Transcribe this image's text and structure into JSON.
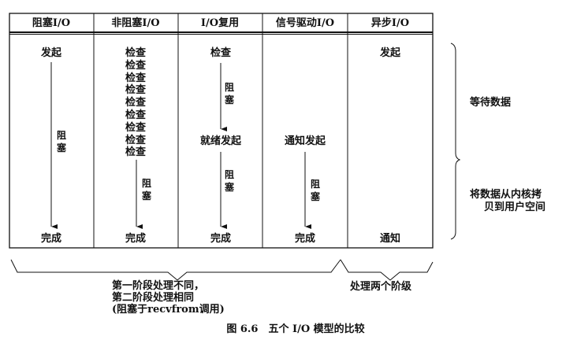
{
  "headers": [
    "阻塞I/O",
    "非阻塞I/O",
    "I/O复用",
    "信号驱动I/O",
    "异步I/O"
  ],
  "columns": [
    {
      "start": "发起",
      "block": "阻塞",
      "end": "完成"
    },
    {
      "check": "检查",
      "check_count": 9,
      "block": "阻塞",
      "end": "完成"
    },
    {
      "check": "检查",
      "block1": "阻塞",
      "ready": "就绪发起",
      "block2": "阻塞",
      "end": "完成"
    },
    {
      "notify_start": "通知发起",
      "block": "阻塞",
      "end": "完成"
    },
    {
      "start": "发起",
      "end": "通知"
    }
  ],
  "phases": {
    "wait": "等待数据",
    "copy_line1": "将数据从内核拷",
    "copy_line2": "贝到用户空间"
  },
  "bottom_notes": {
    "left_line1": "第一阶段处理不同，",
    "left_line2": "第二阶段处理相同",
    "left_line3": "(阻塞于recvfrom调用)",
    "right": "处理两个阶级"
  },
  "caption": "图 6.6　五个 I/O 模型的比较"
}
